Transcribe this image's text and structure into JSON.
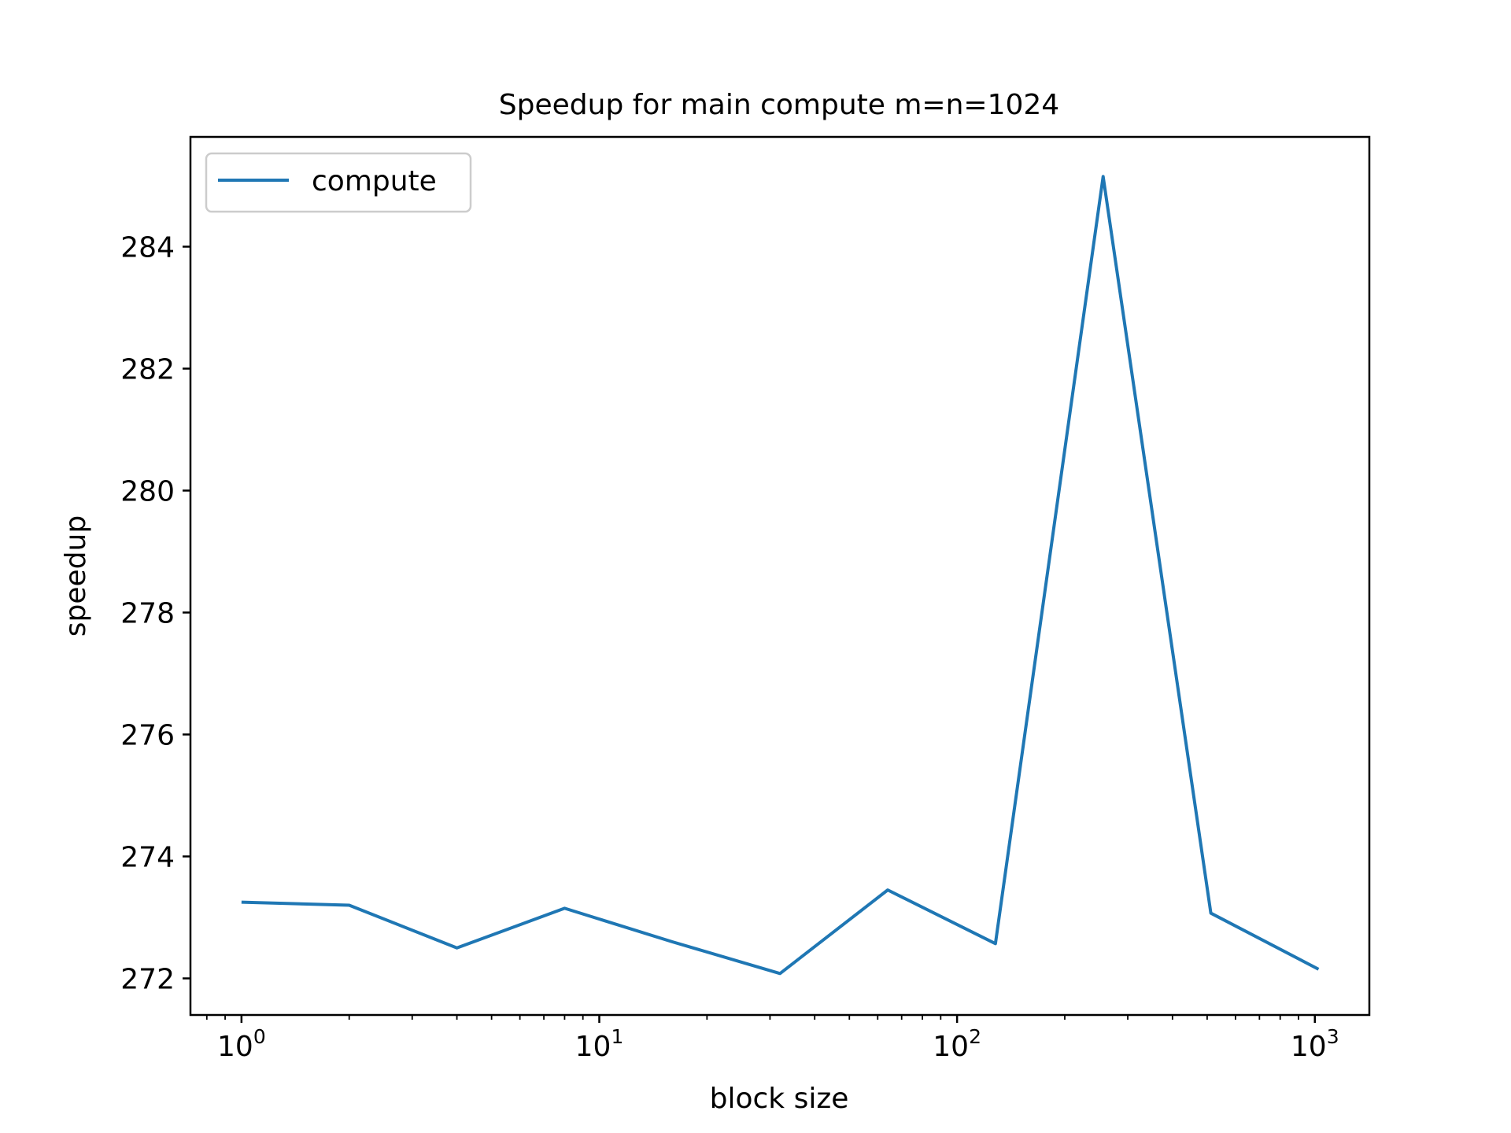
{
  "chart_data": {
    "type": "line",
    "title": "Speedup for main compute m=n=1024",
    "xlabel": "block size",
    "ylabel": "speedup",
    "xscale": "log",
    "xlim": [
      0.72,
      1420
    ],
    "ylim": [
      271.4,
      285.8
    ],
    "x_major_ticks": [
      {
        "value": 1,
        "base": "10",
        "exp": "0"
      },
      {
        "value": 10,
        "base": "10",
        "exp": "1"
      },
      {
        "value": 100,
        "base": "10",
        "exp": "2"
      },
      {
        "value": 1000,
        "base": "10",
        "exp": "3"
      }
    ],
    "y_ticks": [
      272,
      274,
      276,
      278,
      280,
      282,
      284
    ],
    "grid": false,
    "legend_position": "top-left",
    "series": [
      {
        "name": "compute",
        "color": "#1f77b4",
        "x": [
          1,
          2,
          4,
          8,
          16,
          32,
          64,
          128,
          256,
          512,
          1024
        ],
        "y": [
          273.25,
          273.2,
          272.5,
          273.15,
          272.6,
          272.08,
          273.45,
          272.57,
          285.15,
          273.07,
          272.15
        ]
      }
    ]
  }
}
